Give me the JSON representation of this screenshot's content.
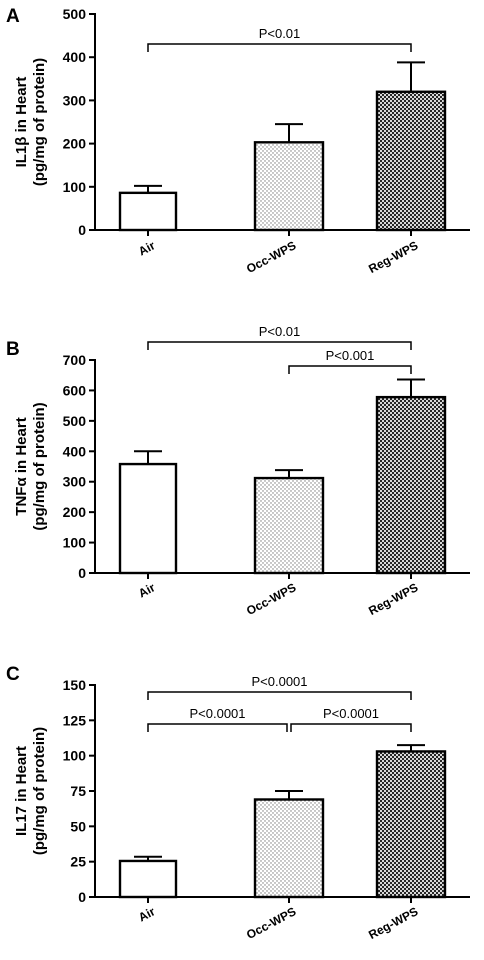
{
  "chart_data": [
    {
      "type": "bar",
      "panel": "A",
      "categories": [
        "Air",
        "Occ-WPS",
        "Reg-WPS"
      ],
      "values": [
        86,
        203,
        320
      ],
      "errors": [
        16,
        42,
        68
      ],
      "patterns": [
        "none",
        "dots",
        "checker"
      ],
      "ylabel_line1": "IL1β in Heart",
      "ylabel_line2": "(pg/mg of protein)",
      "ylim": [
        0,
        500
      ],
      "yticks": [
        0,
        100,
        200,
        300,
        400,
        500
      ],
      "yticklabels": [
        "0",
        "100",
        "200",
        "300",
        "400",
        "500"
      ],
      "comparisons": [
        {
          "from": "Air",
          "to": "Reg-WPS",
          "label": "P<0.01"
        }
      ]
    },
    {
      "type": "bar",
      "panel": "B",
      "categories": [
        "Air",
        "Occ-WPS",
        "Reg-WPS"
      ],
      "values": [
        358,
        312,
        578
      ],
      "errors": [
        42,
        26,
        58
      ],
      "patterns": [
        "none",
        "dots",
        "checker"
      ],
      "ylabel_line1": "TNFα in Heart",
      "ylabel_line2": "(pg/mg of protein)",
      "ylim": [
        0,
        700
      ],
      "yticks": [
        0,
        100,
        200,
        300,
        400,
        500,
        600,
        700
      ],
      "yticklabels": [
        "0",
        "100",
        "200",
        "300",
        "400",
        "500",
        "600",
        "700"
      ],
      "comparisons": [
        {
          "from": "Air",
          "to": "Reg-WPS",
          "label": "P<0.01"
        },
        {
          "from": "Occ-WPS",
          "to": "Reg-WPS",
          "label": "P<0.001"
        }
      ]
    },
    {
      "type": "bar",
      "panel": "C",
      "categories": [
        "Air",
        "Occ-WPS",
        "Reg-WPS"
      ],
      "values": [
        25.5,
        69,
        103
      ],
      "errors": [
        3,
        6,
        4.5
      ],
      "patterns": [
        "none",
        "dots",
        "checker"
      ],
      "ylabel_line1": "IL17 in Heart",
      "ylabel_line2": "(pg/mg of protein)",
      "ylim": [
        0,
        150
      ],
      "yticks": [
        0,
        25,
        50,
        75,
        100,
        125,
        150
      ],
      "yticklabels": [
        "0",
        "25",
        "50",
        "75",
        "100",
        "125",
        "150"
      ],
      "comparisons": [
        {
          "from": "Air",
          "to": "Occ-WPS",
          "label": "P<0.0001"
        },
        {
          "from": "Occ-WPS",
          "to": "Reg-WPS",
          "label": "P<0.0001"
        },
        {
          "from": "Air",
          "to": "Reg-WPS",
          "label": "P<0.0001"
        }
      ]
    }
  ]
}
